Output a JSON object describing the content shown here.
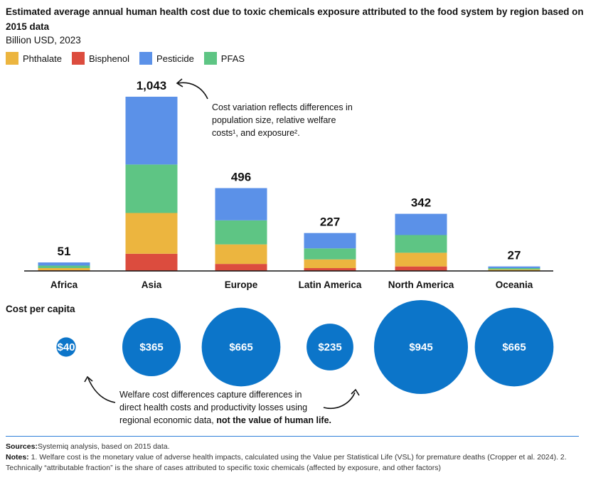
{
  "colors": {
    "Phthalate": "#ecb53f",
    "Bisphenol": "#dc4c3e",
    "Pesticide": "#5b91e8",
    "PFAS": "#5ec584",
    "circle": "#0c75c9",
    "axis": "#111111"
  },
  "chart_data": {
    "type": "bar",
    "stacked": true,
    "title": "Estimated average annual human health cost due to toxic chemicals exposure attributed to the food system by region based on 2015 data",
    "ylabel": "Billion USD, 2023",
    "categories": [
      "Africa",
      "Asia",
      "Europe",
      "Latin America",
      "North America",
      "Oceania"
    ],
    "series": [
      {
        "name": "Phthalate",
        "values": [
          13,
          244,
          117,
          52,
          82,
          7
        ]
      },
      {
        "name": "Bisphenol",
        "values": [
          4,
          103,
          42,
          17,
          27,
          2
        ]
      },
      {
        "name": "Pesticide",
        "values": [
          19,
          406,
          193,
          92,
          127,
          10
        ]
      },
      {
        "name": "PFAS",
        "values": [
          15,
          290,
          144,
          66,
          106,
          8
        ]
      }
    ],
    "stack_order_bottom_to_top": [
      "Bisphenol",
      "Phthalate",
      "PFAS",
      "Pesticide"
    ],
    "totals": [
      51,
      1043,
      496,
      227,
      342,
      27
    ],
    "total_labels": [
      "51",
      "1,043",
      "496",
      "227",
      "342",
      "27"
    ],
    "per_capita_title": "Cost per capita",
    "per_capita_values": [
      40,
      365,
      665,
      235,
      945,
      665
    ],
    "per_capita_labels": [
      "$40",
      "$365",
      "$665",
      "$235",
      "$945",
      "$665"
    ]
  },
  "legend": [
    {
      "label": "Phthalate",
      "color": "#ecb53f"
    },
    {
      "label": "Bisphenol",
      "color": "#dc4c3e"
    },
    {
      "label": "Pesticide",
      "color": "#5b91e8"
    },
    {
      "label": "PFAS",
      "color": "#5ec584"
    }
  ],
  "annotations": {
    "asia_note_line1": "Cost variation reflects differences in",
    "asia_note_line2": "population size, relative welfare",
    "asia_note_line3": "costs¹, and exposure².",
    "welfare_note_line1": "Welfare cost differences capture differences in",
    "welfare_note_line2": "direct health costs and productivity losses using",
    "welfare_note_line3_plain": "regional economic data, ",
    "welfare_note_line3_bold": "not the value of human life."
  },
  "footer": {
    "sources_label": "Sources:",
    "sources_text": "Systemiq analysis, based on 2015 data.",
    "notes_label": "Notes:",
    "notes_text": " 1. Welfare cost is the monetary value of adverse health impacts, calculated using the Value per Statistical Life (VSL) for premature deaths (Cropper et al. 2024). 2. Technically “attributable fraction” is the share of cases attributed to specific toxic chemicals (affected by exposure, and other factors)"
  }
}
